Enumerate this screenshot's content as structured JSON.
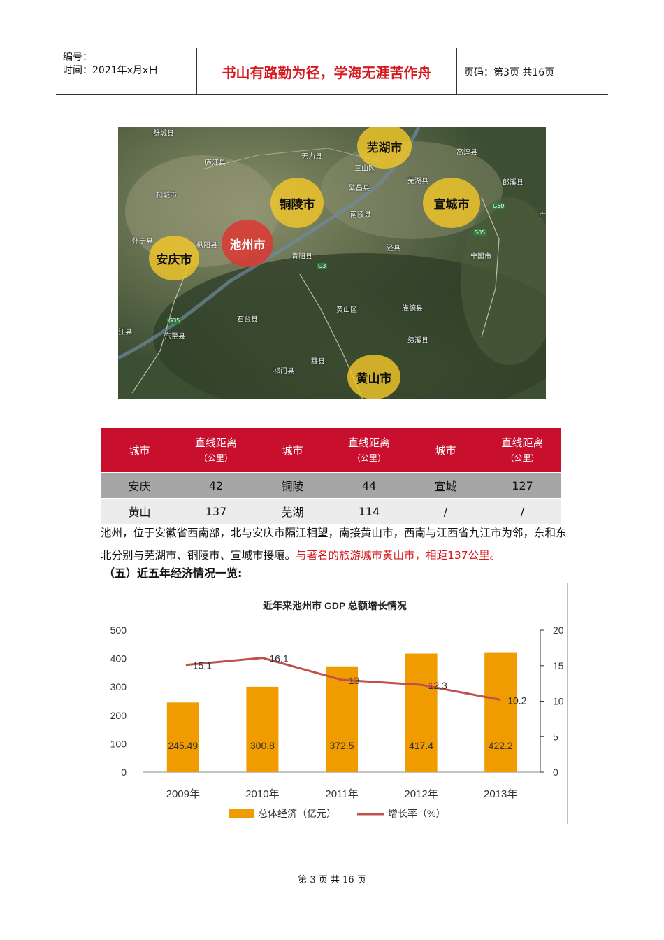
{
  "header": {
    "number_label": "编号：",
    "time_label": "时间：2021年x月x日",
    "motto": "书山有路勤为径，学海无涯苦作舟",
    "page_label": "页码：第3页  共16页"
  },
  "map": {
    "cities": [
      {
        "name": "芜湖市",
        "style": "yellow"
      },
      {
        "name": "铜陵市",
        "style": "yellow"
      },
      {
        "name": "宣城市",
        "style": "yellow"
      },
      {
        "name": "池州市",
        "style": "red"
      },
      {
        "name": "安庆市",
        "style": "yellow"
      },
      {
        "name": "黄山市",
        "style": "yellow"
      }
    ],
    "places": [
      "舒城县",
      "无为县",
      "高淳县",
      "庐江县",
      "三山区",
      "繁昌县",
      "芜湖县",
      "郎溪县",
      "桐城市",
      "南陵县",
      "广",
      "怀宁县",
      "枞阳县",
      "泾县",
      "宁国市",
      "青阳县",
      "黄山区",
      "旌德县",
      "石台县",
      "绩溪县",
      "江县",
      "东至县",
      "黟县",
      "祁门县"
    ],
    "roads": [
      "G50",
      "S05",
      "G3",
      "G35"
    ]
  },
  "table": {
    "headers": [
      {
        "label": "城市"
      },
      {
        "label": "直线距离",
        "sub": "（公里）"
      },
      {
        "label": "城市"
      },
      {
        "label": "直线距离",
        "sub": "（公里）"
      },
      {
        "label": "城市"
      },
      {
        "label": "直线距离",
        "sub": "（公里）"
      }
    ],
    "rows": [
      [
        "安庆",
        "42",
        "铜陵",
        "44",
        "宣城",
        "127"
      ],
      [
        "黄山",
        "137",
        "芜湖",
        "114",
        "/",
        "/"
      ]
    ]
  },
  "paragraph": {
    "text": "池州，位于安徽省西南部，北与安庆市隔江相望，南接黄山市，西南与江西省九江市为邻，东和东北分别与芜湖市、铜陵市、宣城市接壤。",
    "highlight": "与著名的旅游城市黄山市，相距137公里。"
  },
  "section_heading": "（五）近五年经济情况一览:",
  "chart_data": {
    "type": "bar",
    "title": "近年来池州市 GDP 总额增长情况",
    "categories": [
      "2009年",
      "2010年",
      "2011年",
      "2012年",
      "2013年"
    ],
    "series": [
      {
        "name": "总体经济（亿元）",
        "type": "bar",
        "axis": "left",
        "values": [
          245.49,
          300.8,
          372.5,
          417.4,
          422.2
        ],
        "color": "#f09b00"
      },
      {
        "name": "增长率（%）",
        "type": "line",
        "axis": "right",
        "values": [
          15.1,
          16.1,
          13,
          12.3,
          10.2
        ],
        "color": "#c0504d"
      }
    ],
    "y_left": {
      "ticks": [
        "0",
        "100",
        "200",
        "300",
        "400",
        "500"
      ],
      "range": [
        0,
        500
      ]
    },
    "y_right": {
      "ticks": [
        "0",
        "5",
        "10",
        "15",
        "20"
      ],
      "range": [
        0,
        20
      ]
    },
    "grid": false,
    "legend": "bottom"
  },
  "footer": "第 3 页 共 16 页"
}
